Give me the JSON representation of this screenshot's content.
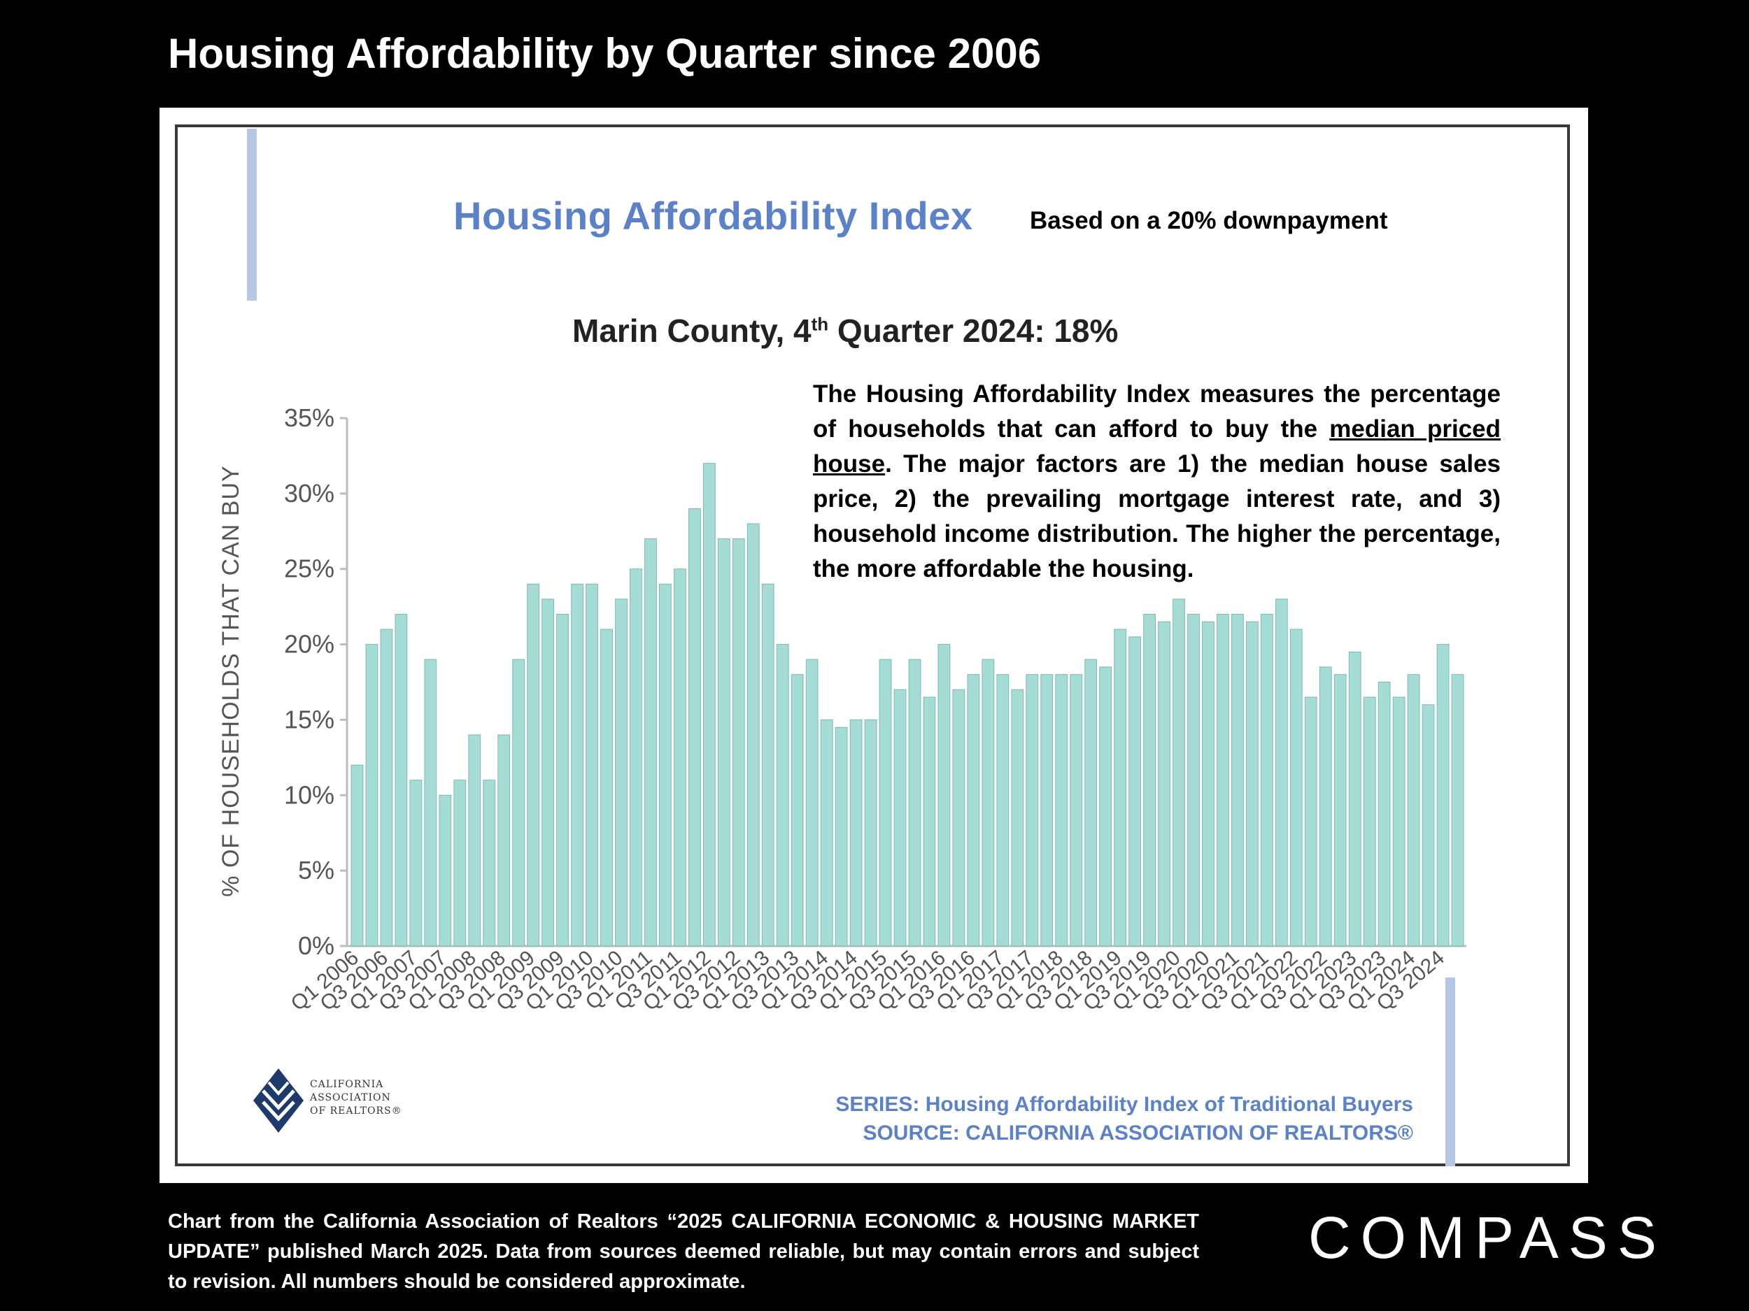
{
  "slide": {
    "title": "Housing Affordability by Quarter since 2006",
    "footnote": "Chart from the California Association of Realtors “2025 CALIFORNIA ECONOMIC & HOUSING MARKET UPDATE” published March 2025. Data from sources deemed reliable, but may contain errors and subject to revision. All numbers should be considered approximate.",
    "brand": "COMPASS"
  },
  "panel": {
    "heading": "Housing Affordability Index",
    "downpayment_note": "Based on a 20% downpayment",
    "subtitle_pre": "Marin County, 4",
    "subtitle_sup": "th",
    "subtitle_post": " Quarter 2024: 18%",
    "description_1": "The Housing Affordability Index measures the percentage of households that can afford to buy the ",
    "description_link": "median priced house",
    "description_2": ". The major factors are 1) the median house sales price, 2) the prevailing mortgage interest rate, and 3) household income distribution. The higher the percentage, the more affordable the housing.",
    "series_line": "SERIES: Housing Affordability Index of Traditional Buyers",
    "source_line": "SOURCE:  CALIFORNIA ASSOCIATION OF REALTORS®",
    "logo_line1": "CALIFORNIA",
    "logo_line2": "ASSOCIATION",
    "logo_line3": "OF REALTORS®"
  },
  "colors": {
    "bar": "#a6dcd6",
    "bar_edge": "#7fb8b2",
    "heading": "#5b82c8"
  },
  "chart_data": {
    "type": "bar",
    "title": "Housing Affordability Index",
    "ylabel": "% OF HOUSEHOLDS THAT CAN BUY",
    "xlabel": "",
    "ylim": [
      0,
      35
    ],
    "yticks": [
      0,
      5,
      10,
      15,
      20,
      25,
      30,
      35
    ],
    "ytick_suffix": "%",
    "categories": [
      "Q1 2006",
      "Q2 2006",
      "Q3 2006",
      "Q4 2006",
      "Q1 2007",
      "Q2 2007",
      "Q3 2007",
      "Q4 2007",
      "Q1 2008",
      "Q2 2008",
      "Q3 2008",
      "Q4 2008",
      "Q1 2009",
      "Q2 2009",
      "Q3 2009",
      "Q4 2009",
      "Q1 2010",
      "Q2 2010",
      "Q3 2010",
      "Q4 2010",
      "Q1 2011",
      "Q2 2011",
      "Q3 2011",
      "Q4 2011",
      "Q1 2012",
      "Q2 2012",
      "Q3 2012",
      "Q4 2012",
      "Q1 2013",
      "Q2 2013",
      "Q3 2013",
      "Q4 2013",
      "Q1 2014",
      "Q2 2014",
      "Q3 2014",
      "Q4 2014",
      "Q1 2015",
      "Q2 2015",
      "Q3 2015",
      "Q4 2015",
      "Q1 2016",
      "Q2 2016",
      "Q3 2016",
      "Q4 2016",
      "Q1 2017",
      "Q2 2017",
      "Q3 2017",
      "Q4 2017",
      "Q1 2018",
      "Q2 2018",
      "Q3 2018",
      "Q4 2018",
      "Q1 2019",
      "Q2 2019",
      "Q3 2019",
      "Q4 2019",
      "Q1 2020",
      "Q2 2020",
      "Q3 2020",
      "Q4 2020",
      "Q1 2021",
      "Q2 2021",
      "Q3 2021",
      "Q4 2021",
      "Q1 2022",
      "Q2 2022",
      "Q3 2022",
      "Q4 2022",
      "Q1 2023",
      "Q2 2023",
      "Q3 2023",
      "Q4 2023",
      "Q1 2024",
      "Q2 2024",
      "Q3 2024",
      "Q4 2024"
    ],
    "tick_labels": [
      "Q1 2006",
      "Q3 2006",
      "Q1 2007",
      "Q3 2007",
      "Q1 2008",
      "Q3 2008",
      "Q1 2009",
      "Q3 2009",
      "Q1 2010",
      "Q3 2010",
      "Q1 2011",
      "Q3 2011",
      "Q1 2012",
      "Q3 2012",
      "Q1 2013",
      "Q3 2013",
      "Q1 2014",
      "Q3 2014",
      "Q1 2015",
      "Q3 2015",
      "Q1 2016",
      "Q3 2016",
      "Q1 2017",
      "Q3 2017",
      "Q1 2018",
      "Q3 2018",
      "Q1 2019",
      "Q3 2019",
      "Q1 2020",
      "Q3 2020",
      "Q1 2021",
      "Q3 2021",
      "Q1 2022",
      "Q3 2022",
      "Q1 2023",
      "Q3 2023",
      "Q1 2024",
      "Q3 2024"
    ],
    "values": [
      12,
      20,
      21,
      22,
      11,
      19,
      10,
      11,
      14,
      11,
      14,
      19,
      24,
      23,
      22,
      24,
      24,
      21,
      23,
      25,
      27,
      24,
      25,
      29,
      32,
      27,
      27,
      28,
      24,
      20,
      18,
      19,
      15,
      14.5,
      15,
      15,
      19,
      17,
      19,
      16.5,
      20,
      17,
      18,
      19,
      18,
      17,
      18,
      18,
      18,
      18,
      19,
      18.5,
      21,
      20.5,
      22,
      21.5,
      23,
      22,
      21.5,
      22,
      22,
      21.5,
      22,
      23,
      21,
      16.5,
      18.5,
      18,
      19.5,
      16.5,
      17.5,
      16.5,
      18,
      16,
      20,
      18
    ]
  }
}
